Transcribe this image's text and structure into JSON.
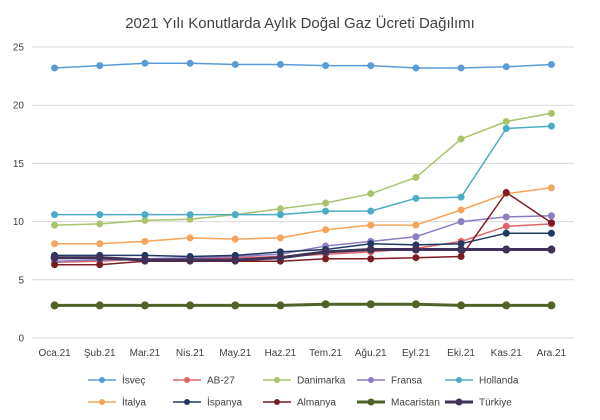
{
  "chart_data": {
    "type": "line",
    "title": "2021 Yılı Konutlarda Aylık Doğal Gaz Ücreti Dağılımı",
    "xlabel": "",
    "ylabel": "",
    "ylim": [
      0,
      25
    ],
    "yticks": [
      "0",
      "5",
      "10",
      "15",
      "20",
      "25"
    ],
    "grid": true,
    "legend_position": "bottom",
    "categories": [
      "Oca.21",
      "Şub.21",
      "Mar.21",
      "Nis.21",
      "May.21",
      "Haz.21",
      "Tem.21",
      "Ağu.21",
      "Eyl.21",
      "Eki.21",
      "Kas.21",
      "Ara.21"
    ],
    "series": [
      {
        "name": "İsveç",
        "color": "#5b9bd5",
        "width": 1.5,
        "values": [
          23.2,
          23.4,
          23.6,
          23.6,
          23.5,
          23.5,
          23.4,
          23.4,
          23.2,
          23.2,
          23.3,
          23.5
        ]
      },
      {
        "name": "AB-27",
        "color": "#e06666",
        "width": 1.5,
        "values": [
          6.5,
          6.6,
          6.8,
          6.8,
          6.9,
          7.0,
          7.2,
          7.4,
          7.7,
          8.3,
          9.6,
          9.8
        ]
      },
      {
        "name": "Danimarka",
        "color": "#a9c46c",
        "width": 1.5,
        "values": [
          9.7,
          9.8,
          10.1,
          10.2,
          10.6,
          11.1,
          11.6,
          12.4,
          13.8,
          17.1,
          18.6,
          19.3
        ]
      },
      {
        "name": "Fransa",
        "color": "#8e7cc3",
        "width": 1.5,
        "values": [
          6.6,
          6.7,
          6.8,
          6.9,
          7.0,
          7.2,
          7.9,
          8.3,
          8.7,
          10.0,
          10.4,
          10.5
        ]
      },
      {
        "name": "Hollanda",
        "color": "#4bacc6",
        "width": 1.5,
        "values": [
          10.6,
          10.6,
          10.6,
          10.6,
          10.6,
          10.6,
          10.9,
          10.9,
          12.0,
          12.1,
          18.0,
          18.2
        ]
      },
      {
        "name": "İtalya",
        "color": "#f4a55a",
        "width": 1.5,
        "values": [
          8.1,
          8.1,
          8.3,
          8.6,
          8.5,
          8.6,
          9.3,
          9.7,
          9.7,
          11.0,
          12.4,
          12.9
        ]
      },
      {
        "name": "İspanya",
        "color": "#1f3864",
        "width": 1.5,
        "values": [
          7.1,
          7.1,
          7.1,
          7.0,
          7.1,
          7.4,
          7.6,
          8.1,
          8.0,
          8.1,
          9.0,
          9.0
        ]
      },
      {
        "name": "Almanya",
        "color": "#7b1c25",
        "width": 1.5,
        "values": [
          6.3,
          6.3,
          6.6,
          6.6,
          6.6,
          6.6,
          6.8,
          6.8,
          6.9,
          7.0,
          12.5,
          9.9
        ]
      },
      {
        "name": "Macaristan",
        "color": "#4f6228",
        "width": 3,
        "values": [
          2.8,
          2.8,
          2.8,
          2.8,
          2.8,
          2.8,
          2.9,
          2.9,
          2.9,
          2.8,
          2.8,
          2.8
        ]
      },
      {
        "name": "Türkiye",
        "color": "#3f3157",
        "width": 3,
        "values": [
          6.9,
          6.9,
          6.7,
          6.7,
          6.7,
          6.9,
          7.4,
          7.6,
          7.6,
          7.6,
          7.6,
          7.6
        ]
      }
    ]
  }
}
